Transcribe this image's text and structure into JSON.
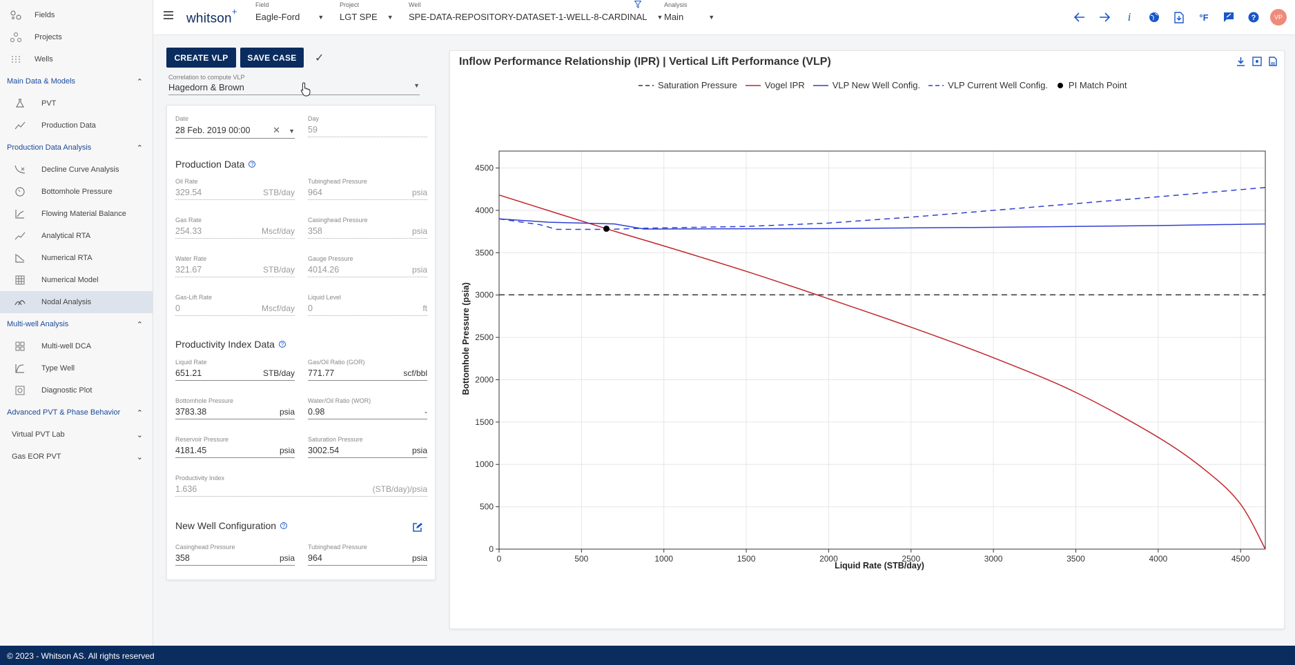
{
  "sidebar": {
    "top_items": [
      {
        "label": "Fields",
        "icon": "fields-icon"
      },
      {
        "label": "Projects",
        "icon": "projects-icon"
      },
      {
        "label": "Wells",
        "icon": "wells-icon"
      }
    ],
    "sections": [
      {
        "label": "Main Data & Models",
        "items": [
          {
            "label": "PVT"
          },
          {
            "label": "Production Data"
          }
        ]
      },
      {
        "label": "Production Data Analysis",
        "items": [
          {
            "label": "Decline Curve Analysis"
          },
          {
            "label": "Bottomhole Pressure"
          },
          {
            "label": "Flowing Material Balance"
          },
          {
            "label": "Analytical RTA"
          },
          {
            "label": "Numerical RTA"
          },
          {
            "label": "Numerical Model"
          },
          {
            "label": "Nodal Analysis"
          }
        ]
      },
      {
        "label": "Multi-well Analysis",
        "items": [
          {
            "label": "Multi-well DCA"
          },
          {
            "label": "Type Well"
          },
          {
            "label": "Diagnostic Plot"
          }
        ]
      },
      {
        "label": "Advanced PVT & Phase Behavior",
        "items": []
      }
    ],
    "collapsed": [
      {
        "label": "Virtual PVT Lab"
      },
      {
        "label": "Gas EOR PVT"
      }
    ]
  },
  "topbar": {
    "logo": "whitson",
    "logo_plus": "+",
    "field": {
      "label": "Field",
      "value": "Eagle-Ford"
    },
    "project": {
      "label": "Project",
      "value": "LGT SPE"
    },
    "well": {
      "label": "Well",
      "value": "SPE-DATA-REPOSITORY-DATASET-1-WELL-8-CARDINAL"
    },
    "analysis": {
      "label": "Analysis",
      "value": "Main"
    },
    "avatar": "VP",
    "unit_toggle": "°F",
    "info": "i"
  },
  "actions": {
    "create_vlp": "CREATE VLP",
    "save_case": "SAVE CASE"
  },
  "correlation": {
    "label": "Correlation to compute VLP",
    "value": "Hagedorn & Brown"
  },
  "date_field": {
    "label": "Date",
    "value": "28 Feb. 2019 00:00"
  },
  "day_field": {
    "label": "Day",
    "value": "59"
  },
  "production_data": {
    "title": "Production Data",
    "fields": [
      {
        "label": "Oil Rate",
        "value": "329.54",
        "unit": "STB/day"
      },
      {
        "label": "Tubinghead Pressure",
        "value": "964",
        "unit": "psia"
      },
      {
        "label": "Gas Rate",
        "value": "254.33",
        "unit": "Mscf/day"
      },
      {
        "label": "Casinghead Pressure",
        "value": "358",
        "unit": "psia"
      },
      {
        "label": "Water Rate",
        "value": "321.67",
        "unit": "STB/day"
      },
      {
        "label": "Gauge Pressure",
        "value": "4014.26",
        "unit": "psia"
      },
      {
        "label": "Gas-Lift Rate",
        "value": "0",
        "unit": "Mscf/day"
      },
      {
        "label": "Liquid Level",
        "value": "0",
        "unit": "ft"
      }
    ]
  },
  "pi_data": {
    "title": "Productivity Index Data",
    "fields": [
      {
        "label": "Liquid Rate",
        "value": "651.21",
        "unit": "STB/day"
      },
      {
        "label": "Gas/Oil Ratio (GOR)",
        "value": "771.77",
        "unit": "scf/bbl"
      },
      {
        "label": "Bottomhole Pressure",
        "value": "3783.38",
        "unit": "psia"
      },
      {
        "label": "Water/Oil Ratio (WOR)",
        "value": "0.98",
        "unit": "-"
      },
      {
        "label": "Reservoir Pressure",
        "value": "4181.45",
        "unit": "psia"
      },
      {
        "label": "Saturation Pressure",
        "value": "3002.54",
        "unit": "psia"
      }
    ],
    "pi": {
      "label": "Productivity Index",
      "value": "1.636",
      "unit": "(STB/day)/psia"
    }
  },
  "new_well": {
    "title": "New Well Configuration",
    "fields": [
      {
        "label": "Casinghead Pressure",
        "value": "358",
        "unit": "psia"
      },
      {
        "label": "Tubinghead Pressure",
        "value": "964",
        "unit": "psia"
      }
    ]
  },
  "chart_data": {
    "type": "line",
    "title": "Inflow Performance Relationship (IPR) | Vertical Lift Performance (VLP)",
    "xlabel": "Liquid Rate (STB/day)",
    "ylabel": "Bottomhole Pressure (psia)",
    "xlim": [
      0,
      4650
    ],
    "ylim": [
      0,
      4700
    ],
    "xticks": [
      0,
      500,
      1000,
      1500,
      2000,
      2500,
      3000,
      3500,
      4000,
      4500
    ],
    "yticks": [
      0,
      500,
      1000,
      1500,
      2000,
      2500,
      3000,
      3500,
      4000,
      4500
    ],
    "grid": true,
    "legend_position": "top",
    "series": [
      {
        "name": "Saturation Pressure",
        "color": "#333333",
        "dash": "dashed",
        "x": [
          0,
          4650
        ],
        "y": [
          3002.54,
          3002.54
        ]
      },
      {
        "name": "Vogel IPR",
        "color": "#c0262d",
        "dash": "solid",
        "x": [
          0,
          651.21,
          1000,
          1500,
          1930,
          2500,
          3000,
          3500,
          4000,
          4300,
          4500,
          4650
        ],
        "y": [
          4181,
          3783,
          3580,
          3280,
          3002,
          2620,
          2260,
          1850,
          1320,
          910,
          530,
          0
        ]
      },
      {
        "name": "VLP New Well Config.",
        "color": "#2f3fd1",
        "dash": "solid",
        "x": [
          0,
          300,
          700,
          880,
          1000,
          2000,
          3000,
          4000,
          4650
        ],
        "y": [
          3900,
          3860,
          3840,
          3780,
          3780,
          3785,
          3800,
          3820,
          3840
        ]
      },
      {
        "name": "VLP Current Well Config.",
        "color": "#2f3fd1",
        "dash": "dashed",
        "x": [
          0,
          250,
          350,
          650,
          900,
          1500,
          2000,
          2500,
          3000,
          3500,
          4000,
          4650
        ],
        "y": [
          3900,
          3830,
          3775,
          3775,
          3790,
          3810,
          3850,
          3920,
          4000,
          4080,
          4160,
          4270
        ]
      },
      {
        "name": "PI Match Point",
        "color": "#000000",
        "marker": "circle",
        "x": [
          651.21
        ],
        "y": [
          3783.38
        ]
      }
    ]
  },
  "footer": "© 2023 - Whitson AS. All rights reserved"
}
